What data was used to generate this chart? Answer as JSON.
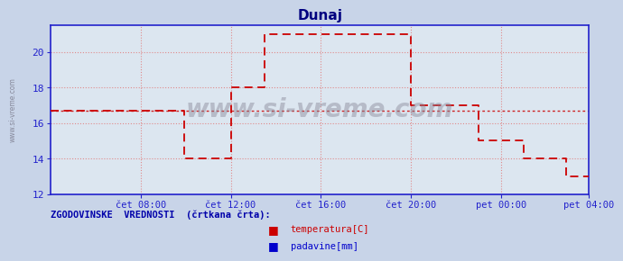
{
  "title": "Dunaj",
  "title_color": "#000080",
  "bg_color": "#c8d4e8",
  "plot_bg_color": "#dce6f0",
  "grid_color": "#e08080",
  "axis_color": "#2222cc",
  "line_color": "#cc0000",
  "hist_line_color": "#cc0000",
  "watermark": "www.si-vreme.com",
  "xlim_start": 0,
  "xlim_end": 287,
  "ylim": [
    12,
    21.5
  ],
  "yticks": [
    12,
    14,
    16,
    18,
    20
  ],
  "xtick_positions": [
    48,
    96,
    144,
    192,
    240,
    287
  ],
  "xtick_labels": [
    "čet 08:00",
    "čet 12:00",
    "čet 16:00",
    "čet 20:00",
    "pet 00:00",
    "pet 04:00"
  ],
  "legend_label1": "temperatura[C]",
  "legend_label2": "padavine[mm]",
  "legend_color1": "#cc0000",
  "legend_color2": "#0000cc",
  "footer_text": "ZGODOVINSKE  VREDNOSTI  (črtkana črta):",
  "footer_color": "#0000aa",
  "hist_avg_y": 16.7,
  "temperature_steps": [
    [
      0,
      16.7
    ],
    [
      71,
      16.7
    ],
    [
      71,
      14.0
    ],
    [
      96,
      14.0
    ],
    [
      96,
      18.0
    ],
    [
      114,
      18.0
    ],
    [
      114,
      21.0
    ],
    [
      192,
      21.0
    ],
    [
      192,
      17.0
    ],
    [
      228,
      17.0
    ],
    [
      228,
      15.0
    ],
    [
      252,
      15.0
    ],
    [
      252,
      14.0
    ],
    [
      275,
      14.0
    ],
    [
      275,
      13.0
    ],
    [
      287,
      13.0
    ]
  ]
}
